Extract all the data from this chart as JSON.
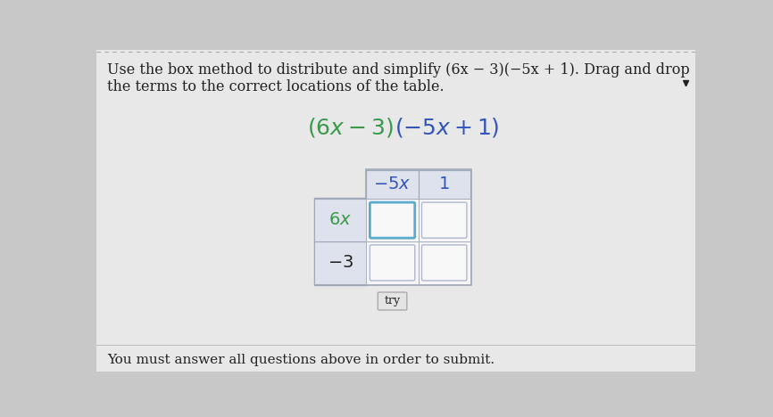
{
  "bg_color": "#c8c8c8",
  "panel_color": "#f0f0f0",
  "title_text_line1": "Use the box method to distribute and simplify (6x − 3)(−5x + 1). Drag and drop",
  "title_text_line2": "the terms to the correct locations of the table.",
  "col_headers": [
    "−5x",
    "1"
  ],
  "row_headers": [
    "6x",
    "−3"
  ],
  "footer_text": "You must answer all questions above in order to submit.",
  "try_button_text": "try",
  "text_color_black": "#222222",
  "text_color_blue": "#3355bb",
  "text_color_green": "#3a9a4a",
  "cell_bg_normal": "#e8eaf0",
  "cell_bg_highlighted": "#cce8f8",
  "cell_border_normal": "#b0b8cc",
  "cell_border_highlighted": "#5aaccc",
  "cell_bg_white": "#f5f5f8",
  "table_outer_bg": "#e0e4ec",
  "table_outer_border": "#a0a8b8",
  "row_header_bg": "#dde2ec",
  "col_header_bg": "#dde2ec"
}
